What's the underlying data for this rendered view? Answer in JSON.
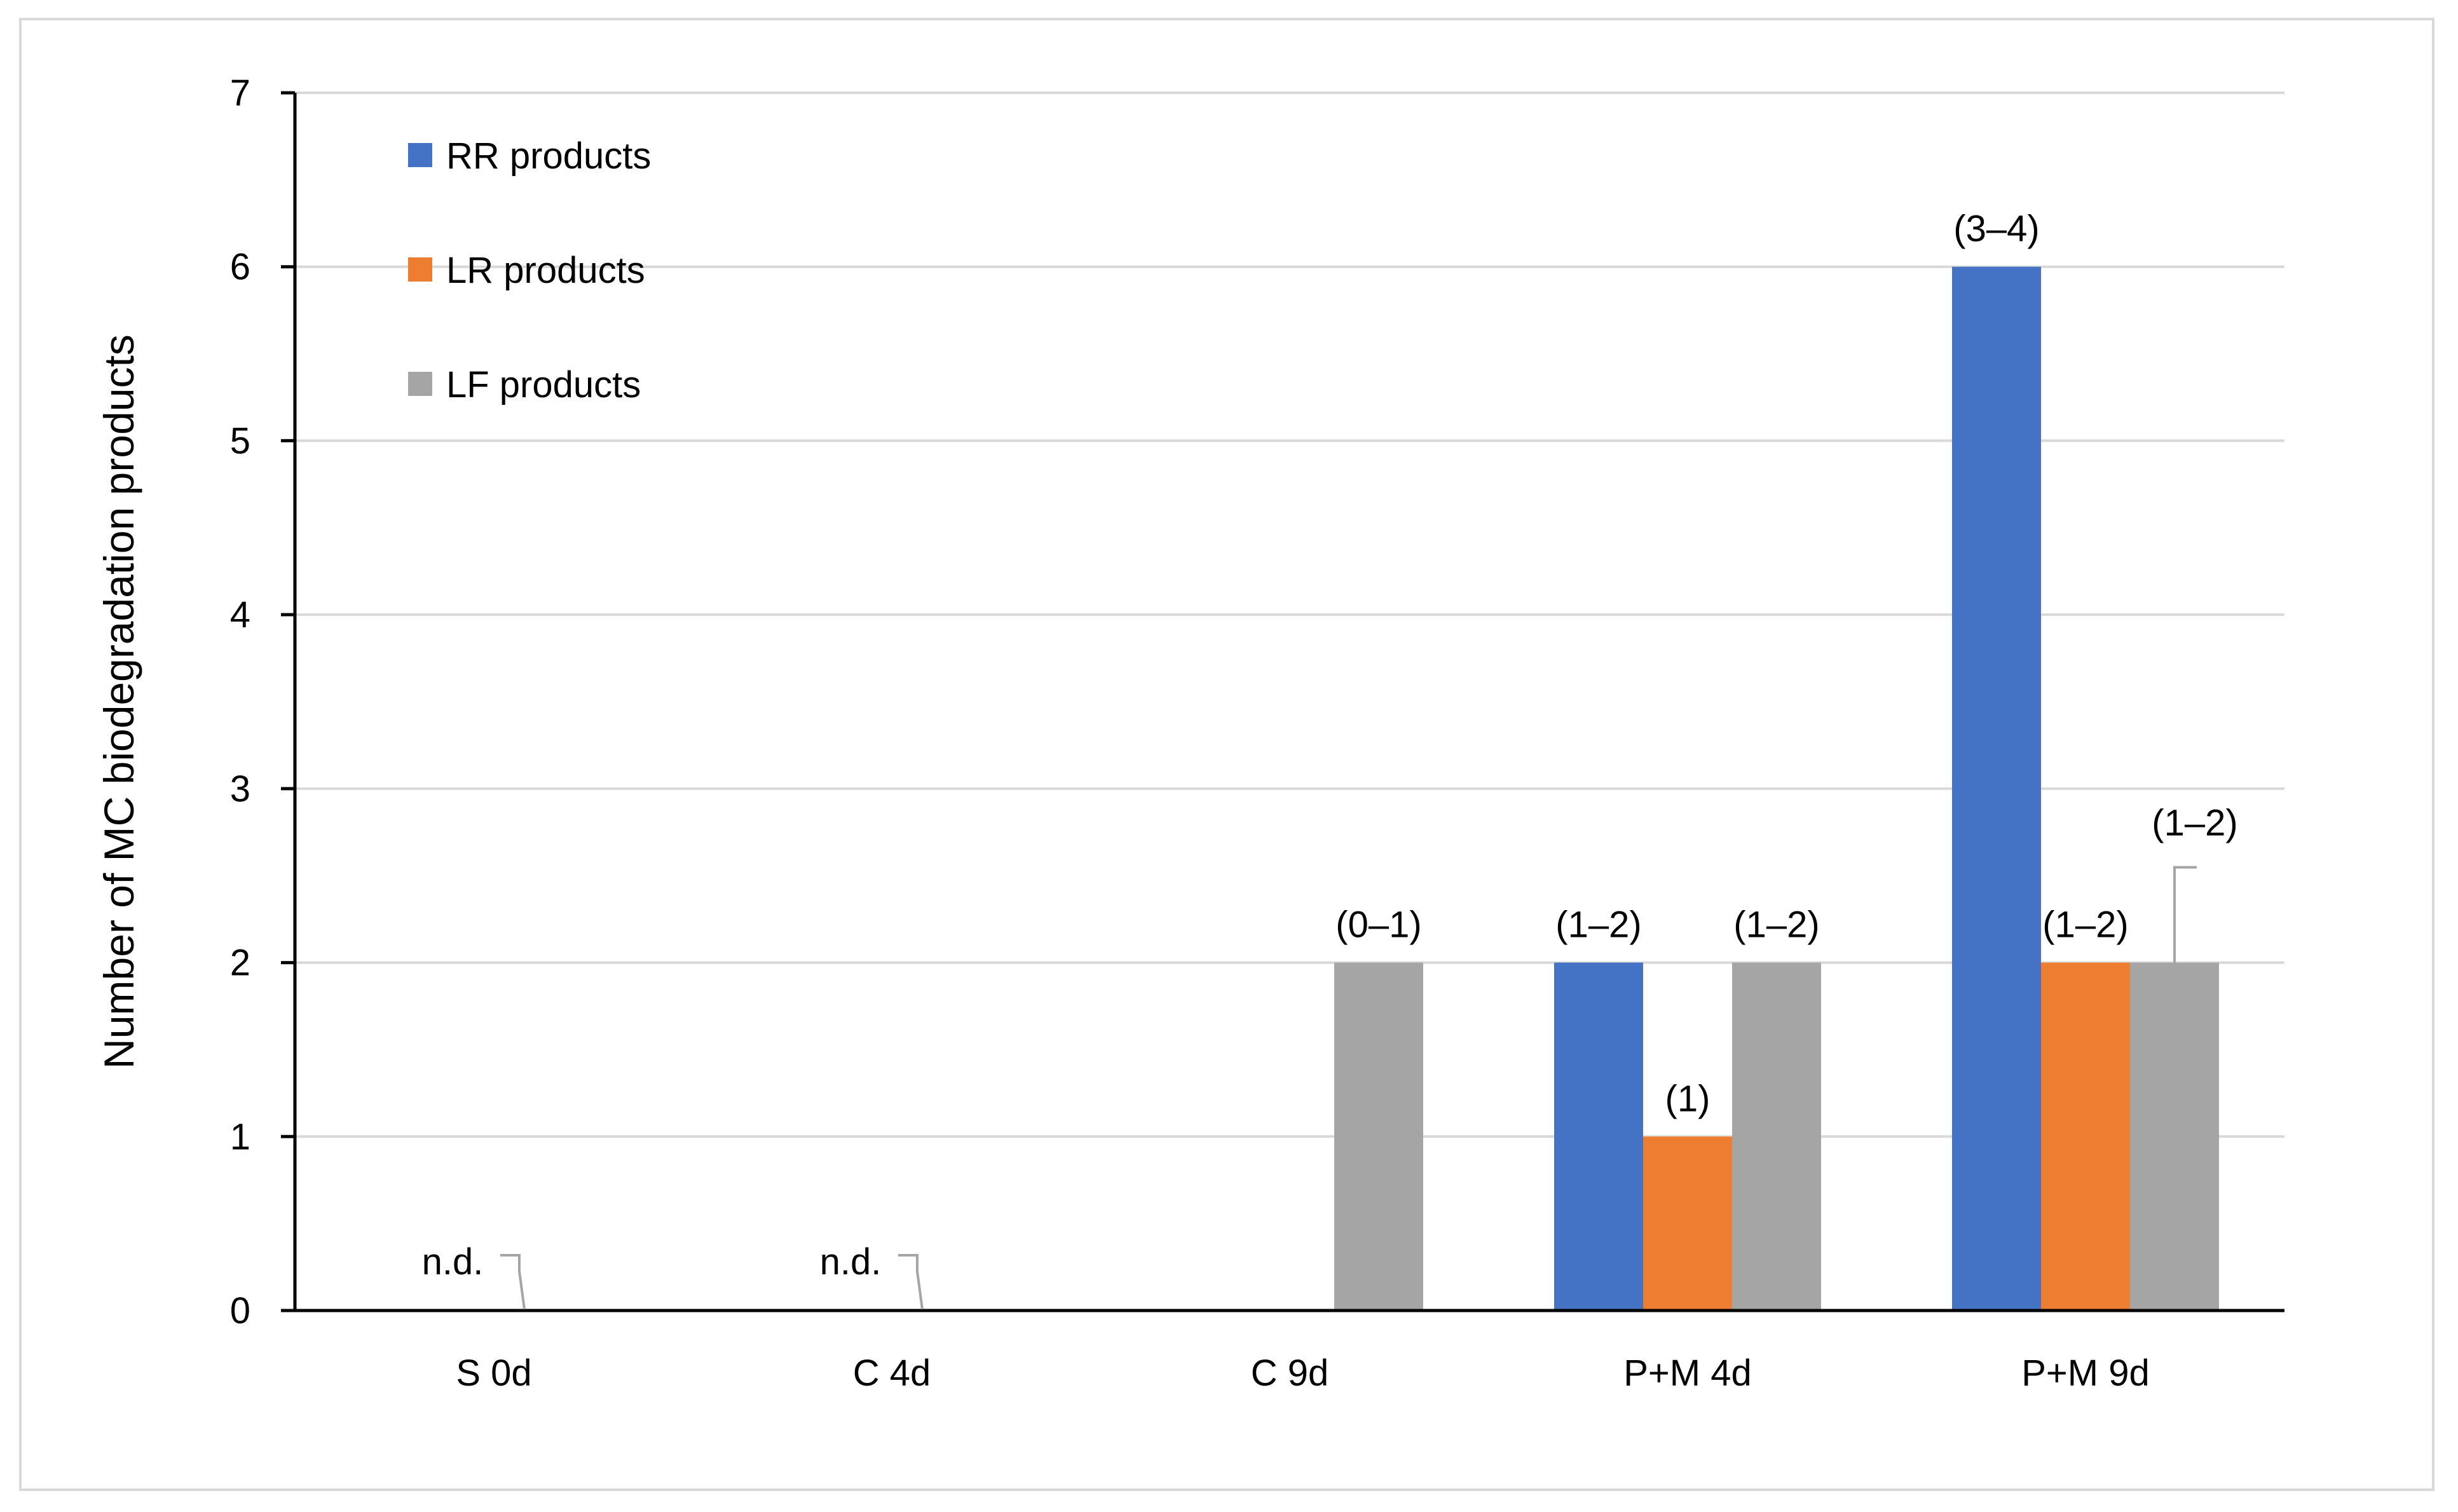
{
  "chart_data": {
    "type": "bar",
    "title": "",
    "xlabel": "",
    "ylabel": "Number of MC biodegradation products",
    "ylim": [
      0,
      7
    ],
    "yticks": [
      0,
      1,
      2,
      3,
      4,
      5,
      6,
      7
    ],
    "grid": true,
    "legend_position": "top-left",
    "categories": [
      "S 0d",
      "C 4d",
      "C 9d",
      "P+M 4d",
      "P+M 9d"
    ],
    "series": [
      {
        "name": "RR products",
        "color": "#4472c4",
        "values": [
          0,
          0,
          0,
          2,
          6
        ],
        "labels": [
          "",
          "",
          "",
          "(1–2)",
          "(3–4)"
        ]
      },
      {
        "name": "LR products",
        "color": "#ed7d31",
        "values": [
          0,
          0,
          0,
          1,
          2
        ],
        "labels": [
          "",
          "",
          "",
          "(1)",
          "(1–2)"
        ]
      },
      {
        "name": "LF products",
        "color": "#a5a5a5",
        "values": [
          0,
          0,
          2,
          2,
          2
        ],
        "labels": [
          "",
          "",
          "(0–1)",
          "(1–2)",
          "(1–2)"
        ]
      }
    ],
    "annotations": [
      {
        "category": "S 0d",
        "text": "n.d."
      },
      {
        "category": "C 4d",
        "text": "n.d."
      }
    ]
  }
}
